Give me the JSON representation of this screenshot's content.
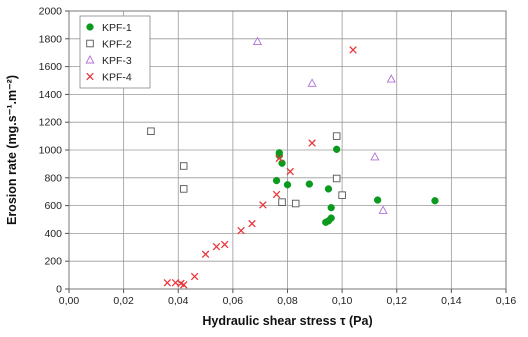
{
  "chart_data": {
    "type": "scatter",
    "xlabel": "Hydraulic shear stress τ (Pa)",
    "ylabel": "Erosion rate (mg.s⁻¹.m⁻²)",
    "xlim": [
      0,
      0.16
    ],
    "ylim": [
      0,
      2000
    ],
    "xticks": [
      "0,00",
      "0,02",
      "0,04",
      "0,06",
      "0,08",
      "0,10",
      "0,12",
      "0,14",
      "0,16"
    ],
    "yticks": [
      "0",
      "200",
      "400",
      "600",
      "800",
      "1000",
      "1200",
      "1400",
      "1600",
      "1800",
      "2000"
    ],
    "grid": true,
    "legend_position": "top-left",
    "series": [
      {
        "name": "KPF-1",
        "marker": "filled-circle",
        "color": "#0a9a1e",
        "points": [
          [
            0.077,
            980
          ],
          [
            0.077,
            960
          ],
          [
            0.078,
            905
          ],
          [
            0.076,
            780
          ],
          [
            0.08,
            750
          ],
          [
            0.088,
            755
          ],
          [
            0.095,
            720
          ],
          [
            0.098,
            1005
          ],
          [
            0.096,
            585
          ],
          [
            0.096,
            510
          ],
          [
            0.095,
            490
          ],
          [
            0.094,
            480
          ],
          [
            0.113,
            640
          ],
          [
            0.134,
            635
          ]
        ]
      },
      {
        "name": "KPF-2",
        "marker": "open-square",
        "color": "#555555",
        "points": [
          [
            0.03,
            1135
          ],
          [
            0.042,
            885
          ],
          [
            0.042,
            720
          ],
          [
            0.078,
            625
          ],
          [
            0.083,
            615
          ],
          [
            0.098,
            1100
          ],
          [
            0.098,
            795
          ],
          [
            0.1,
            675
          ]
        ]
      },
      {
        "name": "KPF-3",
        "marker": "open-triangle",
        "color": "#b070d8",
        "points": [
          [
            0.069,
            1780
          ],
          [
            0.089,
            1480
          ],
          [
            0.112,
            950
          ],
          [
            0.115,
            565
          ],
          [
            0.118,
            1510
          ]
        ]
      },
      {
        "name": "KPF-4",
        "marker": "x",
        "color": "#e8373b",
        "points": [
          [
            0.036,
            45
          ],
          [
            0.039,
            45
          ],
          [
            0.041,
            40
          ],
          [
            0.042,
            30
          ],
          [
            0.046,
            90
          ],
          [
            0.05,
            250
          ],
          [
            0.054,
            305
          ],
          [
            0.057,
            320
          ],
          [
            0.063,
            420
          ],
          [
            0.067,
            470
          ],
          [
            0.071,
            605
          ],
          [
            0.076,
            680
          ],
          [
            0.077,
            940
          ],
          [
            0.081,
            845
          ],
          [
            0.089,
            1050
          ],
          [
            0.104,
            1720
          ]
        ]
      }
    ]
  }
}
